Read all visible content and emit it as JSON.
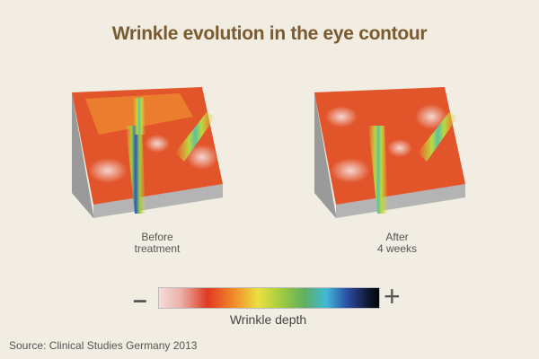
{
  "title": "Wrinkle evolution in the eye contour",
  "panels": [
    {
      "caption_line1": "Before",
      "caption_line2": "treatment",
      "wrinkle_depth": "deep"
    },
    {
      "caption_line1": "After",
      "caption_line2": "4 weeks",
      "wrinkle_depth": "shallow"
    }
  ],
  "legend": {
    "label": "Wrinkle depth",
    "minus": "–",
    "plus": "+",
    "colors": [
      "#f5dcd8",
      "#e03a22",
      "#f08a2a",
      "#ece040",
      "#9ccb40",
      "#40b8d8",
      "#2a4aa0",
      "#050508"
    ]
  },
  "source": "Source: Clinical Studies Germany 2013",
  "colors": {
    "title": "#7a5a2e",
    "background": "#f1ede2",
    "block_side": "#a8a8a8"
  }
}
